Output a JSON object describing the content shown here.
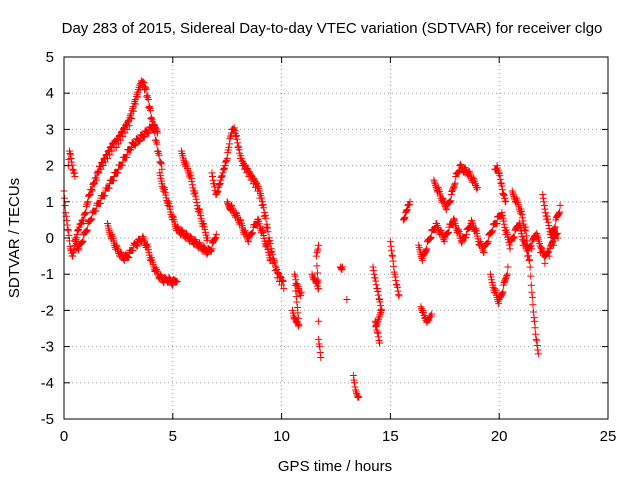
{
  "chart_data": {
    "type": "scatter",
    "title": "Day 283 of 2015, Sidereal Day-to-day VTEC variation (SDTVAR) for receiver clgo",
    "xlabel": "GPS time / hours",
    "ylabel": "SDTVAR / TECUs",
    "xlim": [
      0,
      25
    ],
    "ylim": [
      -5,
      5
    ],
    "xticks": [
      0,
      5,
      10,
      15,
      20,
      25
    ],
    "yticks": [
      -5,
      -4,
      -3,
      -2,
      -1,
      0,
      1,
      2,
      3,
      4,
      5
    ],
    "grid": true,
    "marker": "plus",
    "color": "#ff0000",
    "series": [
      {
        "name": "SDTVAR",
        "segments": [
          {
            "x": [
              0.0,
              0.1,
              0.2,
              0.3,
              0.4,
              0.5,
              0.6,
              0.7,
              0.8,
              0.9,
              1.0,
              1.1,
              1.2,
              1.3,
              1.4,
              1.5,
              1.6,
              1.7,
              1.8,
              1.9,
              2.0,
              2.1,
              2.2,
              2.3,
              2.4,
              2.5,
              2.6,
              2.7,
              2.8,
              2.9,
              3.0,
              3.1,
              3.2,
              3.3,
              3.4,
              3.5,
              3.6,
              3.7,
              3.8,
              3.9,
              4.0,
              4.1,
              4.2,
              4.3,
              4.4,
              4.5
            ],
            "y": [
              1.3,
              0.6,
              0.2,
              -0.3,
              -0.5,
              -0.2,
              0.1,
              0.3,
              0.4,
              0.5,
              0.7,
              1.0,
              1.2,
              1.3,
              1.5,
              1.6,
              1.8,
              1.9,
              2.0,
              2.1,
              2.2,
              2.3,
              2.4,
              2.5,
              2.5,
              2.6,
              2.7,
              2.8,
              2.9,
              3.0,
              3.1,
              3.3,
              3.5,
              3.7,
              3.9,
              4.1,
              4.2,
              4.1,
              3.9,
              3.6,
              3.3,
              3.0,
              2.7,
              2.4,
              2.1,
              1.9
            ]
          },
          {
            "x": [
              0.2,
              0.25,
              0.3,
              0.35,
              0.4,
              0.45,
              0.5
            ],
            "y": [
              2.0,
              2.4,
              2.3,
              2.1,
              1.9,
              1.8,
              1.7
            ]
          },
          {
            "x": [
              0.5,
              0.7,
              0.9,
              1.1,
              1.3,
              1.5,
              1.7,
              1.9,
              2.1,
              2.3,
              2.5,
              2.7,
              2.9,
              3.1,
              3.3,
              3.5,
              3.7,
              3.9,
              4.1,
              4.3
            ],
            "y": [
              0.0,
              -0.2,
              0.1,
              0.4,
              0.7,
              0.9,
              1.1,
              1.3,
              1.5,
              1.7,
              1.9,
              2.1,
              2.3,
              2.5,
              2.6,
              2.7,
              2.8,
              2.9,
              3.0,
              2.9
            ]
          },
          {
            "x": [
              2.0,
              2.2,
              2.4,
              2.6,
              2.8,
              3.0,
              3.2,
              3.4,
              3.6,
              3.8,
              4.0,
              4.2,
              4.4,
              4.6,
              4.8,
              5.0,
              5.2
            ],
            "y": [
              0.4,
              0.1,
              -0.2,
              -0.4,
              -0.5,
              -0.4,
              -0.2,
              -0.1,
              0.0,
              -0.2,
              -0.6,
              -0.9,
              -1.1,
              -1.2,
              -1.2,
              -1.3,
              -1.2
            ]
          },
          {
            "x": [
              4.4,
              4.6,
              4.8,
              5.0,
              5.2,
              5.4,
              5.6,
              5.8,
              6.0,
              6.2,
              6.4,
              6.6,
              6.8,
              7.0
            ],
            "y": [
              1.8,
              1.4,
              1.0,
              0.6,
              0.3,
              0.2,
              0.1,
              0.0,
              -0.1,
              -0.2,
              -0.3,
              -0.4,
              -0.3,
              0.1
            ]
          },
          {
            "x": [
              5.4,
              5.6,
              5.8,
              6.0,
              6.2,
              6.4,
              6.6
            ],
            "y": [
              2.4,
              2.1,
              1.8,
              1.3,
              0.8,
              0.4,
              0.0
            ]
          },
          {
            "x": [
              6.8,
              6.9,
              7.0,
              7.1,
              7.2,
              7.3,
              7.4,
              7.5,
              7.6,
              7.7,
              7.8,
              7.9,
              8.0,
              8.1,
              8.2,
              8.3,
              8.4,
              8.5,
              8.6,
              8.7,
              8.8,
              8.9,
              9.0,
              9.1,
              9.2,
              9.3,
              9.4,
              9.5,
              9.6,
              9.7,
              9.8,
              9.9,
              10.0,
              10.1
            ],
            "y": [
              1.8,
              1.5,
              1.2,
              1.4,
              1.6,
              1.8,
              2.0,
              2.2,
              2.6,
              2.9,
              3.0,
              2.8,
              2.5,
              2.2,
              2.0,
              1.9,
              1.8,
              1.7,
              1.6,
              1.5,
              1.4,
              1.3,
              1.1,
              0.9,
              0.6,
              0.3,
              -0.1,
              -0.4,
              -0.7,
              -0.9,
              -1.1,
              -1.2,
              -1.3,
              -1.4
            ]
          },
          {
            "x": [
              7.5,
              7.7,
              7.9,
              8.1,
              8.3,
              8.5,
              8.7,
              8.9,
              9.1,
              9.3,
              9.5
            ],
            "y": [
              1.0,
              0.9,
              0.7,
              0.5,
              0.2,
              0.0,
              0.3,
              0.5,
              0.2,
              -0.2,
              -0.6
            ]
          },
          {
            "x": [
              10.5,
              10.6,
              10.7,
              10.8,
              10.6,
              10.7,
              10.9
            ],
            "y": [
              -2.0,
              -2.2,
              -2.3,
              -2.4,
              -1.0,
              -1.3,
              -1.5
            ]
          },
          {
            "x": [
              11.4,
              11.5,
              11.6,
              11.7,
              11.6,
              11.7,
              11.7
            ],
            "y": [
              -1.0,
              -1.1,
              -1.2,
              -1.4,
              -0.5,
              -0.2,
              -2.3
            ]
          },
          {
            "x": [
              11.7,
              11.75,
              11.8
            ],
            "y": [
              -2.8,
              -3.0,
              -3.3
            ]
          },
          {
            "x": [
              12.7,
              12.8
            ],
            "y": [
              -0.8,
              -0.8
            ]
          },
          {
            "x": [
              13.0
            ],
            "y": [
              -1.7
            ]
          },
          {
            "x": [
              13.3,
              13.35,
              13.4,
              13.45,
              13.5,
              13.55
            ],
            "y": [
              -3.8,
              -4.0,
              -4.2,
              -4.3,
              -4.4,
              -4.4
            ]
          },
          {
            "x": [
              14.2,
              14.3,
              14.4,
              14.5,
              14.6,
              14.3,
              14.4,
              14.5
            ],
            "y": [
              -0.8,
              -1.1,
              -1.4,
              -1.7,
              -2.0,
              -2.3,
              -2.6,
              -2.9
            ]
          },
          {
            "x": [
              15.0,
              15.1,
              15.2,
              15.3,
              15.4
            ],
            "y": [
              -0.1,
              -0.5,
              -1.0,
              -1.3,
              -1.6
            ]
          },
          {
            "x": [
              15.6,
              15.7,
              15.8,
              15.9
            ],
            "y": [
              0.5,
              0.7,
              0.9,
              1.0
            ]
          },
          {
            "x": [
              16.4,
              16.5,
              16.6,
              16.7,
              16.8,
              16.9
            ],
            "y": [
              -1.9,
              -2.0,
              -2.2,
              -2.3,
              -2.2,
              -2.1
            ]
          },
          {
            "x": [
              16.3,
              16.5,
              16.7,
              16.9,
              17.1,
              17.3,
              17.5,
              17.7,
              17.9,
              18.1,
              18.3,
              18.5,
              18.7,
              18.9,
              19.1,
              19.3,
              19.5,
              19.7,
              19.9,
              20.1,
              20.3,
              20.5,
              20.7,
              20.9,
              21.1,
              21.3,
              21.5,
              21.7,
              21.9,
              22.1,
              22.3,
              22.5,
              22.7
            ],
            "y": [
              -0.2,
              -0.5,
              -0.1,
              0.2,
              0.4,
              0.2,
              0.0,
              0.3,
              0.5,
              0.2,
              -0.1,
              0.1,
              0.4,
              0.2,
              -0.2,
              -0.4,
              -0.1,
              0.2,
              0.4,
              0.6,
              0.1,
              -0.3,
              0.0,
              0.3,
              -0.2,
              -0.5,
              -0.3,
              0.0,
              -0.4,
              -0.7,
              -0.5,
              -0.2,
              0.0
            ]
          },
          {
            "x": [
              17.0,
              17.2,
              17.4,
              17.6,
              17.8,
              18.0,
              18.2,
              18.4,
              18.6,
              18.8,
              19.0
            ],
            "y": [
              1.6,
              1.4,
              1.1,
              0.9,
              1.2,
              1.7,
              2.0,
              1.9,
              1.8,
              1.6,
              1.4
            ]
          },
          {
            "x": [
              19.8,
              19.9,
              20.0,
              20.1,
              20.2,
              20.3
            ],
            "y": [
              1.9,
              2.0,
              1.8,
              1.5,
              1.2,
              1.0
            ]
          },
          {
            "x": [
              19.6,
              19.8,
              20.0,
              20.2,
              20.4
            ],
            "y": [
              -1.0,
              -1.4,
              -1.7,
              -1.3,
              -0.8
            ]
          },
          {
            "x": [
              20.6,
              20.8,
              21.0,
              21.2,
              21.4,
              21.5,
              21.6,
              21.7,
              21.8
            ],
            "y": [
              1.3,
              1.1,
              0.8,
              0.3,
              -0.6,
              -1.5,
              -2.2,
              -2.8,
              -3.2
            ]
          },
          {
            "x": [
              22.0,
              22.2,
              22.4,
              22.6,
              22.8
            ],
            "y": [
              1.2,
              0.6,
              0.1,
              0.5,
              0.9
            ]
          }
        ]
      }
    ]
  }
}
